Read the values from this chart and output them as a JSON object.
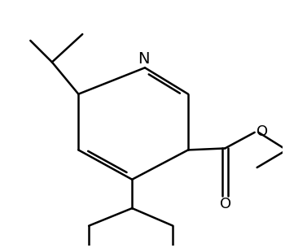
{
  "background_color": "#ffffff",
  "line_color": "#000000",
  "line_width": 1.8,
  "N_label": "N",
  "O_label": "O",
  "font_size": 12,
  "fig_width": 3.5,
  "fig_height": 3.05,
  "dpi": 100,
  "xlim": [
    0,
    10
  ],
  "ylim": [
    0,
    8.7
  ]
}
